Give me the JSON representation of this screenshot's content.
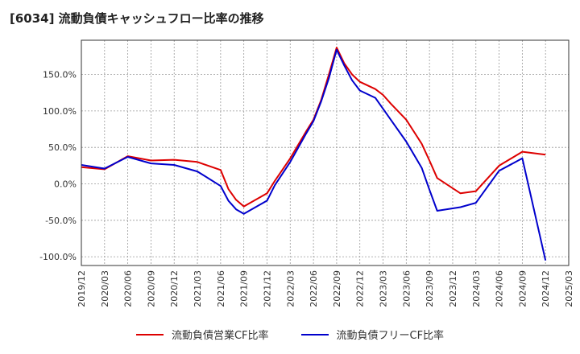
{
  "title": "[6034]  流動負債キャッシュフロー比率の推移",
  "colors": {
    "operating": "#dd0000",
    "free": "#0000cc"
  },
  "chart_data": {
    "type": "line",
    "title": "[6034]  流動負債キャッシュフロー比率の推移",
    "xlabel": "",
    "ylabel": "",
    "x_ticks": [
      "2019/12",
      "2020/03",
      "2020/06",
      "2020/09",
      "2020/12",
      "2021/03",
      "2021/06",
      "2021/09",
      "2021/12",
      "2022/03",
      "2022/06",
      "2022/09",
      "2022/12",
      "2023/03",
      "2023/06",
      "2023/09",
      "2023/12",
      "2024/03",
      "2024/06",
      "2024/09",
      "2024/12",
      "2025/03"
    ],
    "y_ticks": [
      150,
      100,
      50,
      0,
      -50,
      -100
    ],
    "y_tick_labels": [
      "150.0%",
      "100.0%",
      "50.0%",
      "0.0%",
      "-50.0%",
      "-100.0%"
    ],
    "ylim": [
      -112,
      197
    ],
    "grid": true,
    "legend_position": "bottom",
    "series": [
      {
        "name": "流動負債営業CF比率",
        "color": "#dd0000",
        "points": [
          [
            "2019/12",
            23
          ],
          [
            "2020/03",
            20
          ],
          [
            "2020/06",
            38
          ],
          [
            "2020/09",
            32
          ],
          [
            "2020/12",
            33
          ],
          [
            "2021/03",
            30
          ],
          [
            "2021/06",
            19
          ],
          [
            "2021/07",
            -7
          ],
          [
            "2021/08",
            -22
          ],
          [
            "2021/09",
            -31
          ],
          [
            "2021/12",
            -13
          ],
          [
            "2022/01",
            4
          ],
          [
            "2022/03",
            35
          ],
          [
            "2022/05",
            71
          ],
          [
            "2022/06",
            88
          ],
          [
            "2022/07",
            115
          ],
          [
            "2022/08",
            150
          ],
          [
            "2022/09",
            187
          ],
          [
            "2022/10",
            165
          ],
          [
            "2022/11",
            150
          ],
          [
            "2022/12",
            140
          ],
          [
            "2023/02",
            130
          ],
          [
            "2023/03",
            122
          ],
          [
            "2023/04",
            110
          ],
          [
            "2023/06",
            88
          ],
          [
            "2023/08",
            55
          ],
          [
            "2023/09",
            32
          ],
          [
            "2023/10",
            8
          ],
          [
            "2024/01",
            -13
          ],
          [
            "2024/03",
            -10
          ],
          [
            "2024/06",
            25
          ],
          [
            "2024/09",
            44
          ],
          [
            "2024/12",
            40
          ]
        ]
      },
      {
        "name": "流動負債フリーCF比率",
        "color": "#0000cc",
        "points": [
          [
            "2019/12",
            26
          ],
          [
            "2020/03",
            21
          ],
          [
            "2020/06",
            37
          ],
          [
            "2020/09",
            28
          ],
          [
            "2020/12",
            26
          ],
          [
            "2021/03",
            17
          ],
          [
            "2021/06",
            -3
          ],
          [
            "2021/07",
            -23
          ],
          [
            "2021/08",
            -35
          ],
          [
            "2021/09",
            -41
          ],
          [
            "2021/12",
            -23
          ],
          [
            "2022/01",
            -2
          ],
          [
            "2022/03",
            30
          ],
          [
            "2022/05",
            68
          ],
          [
            "2022/06",
            86
          ],
          [
            "2022/07",
            113
          ],
          [
            "2022/08",
            145
          ],
          [
            "2022/09",
            184
          ],
          [
            "2022/10",
            162
          ],
          [
            "2022/11",
            142
          ],
          [
            "2022/12",
            128
          ],
          [
            "2023/02",
            118
          ],
          [
            "2023/03",
            103
          ],
          [
            "2023/04",
            88
          ],
          [
            "2023/06",
            58
          ],
          [
            "2023/08",
            22
          ],
          [
            "2023/09",
            -8
          ],
          [
            "2023/10",
            -37
          ],
          [
            "2024/01",
            -32
          ],
          [
            "2024/03",
            -26
          ],
          [
            "2024/06",
            18
          ],
          [
            "2024/09",
            35
          ],
          [
            "2024/12",
            -105
          ]
        ]
      }
    ]
  }
}
